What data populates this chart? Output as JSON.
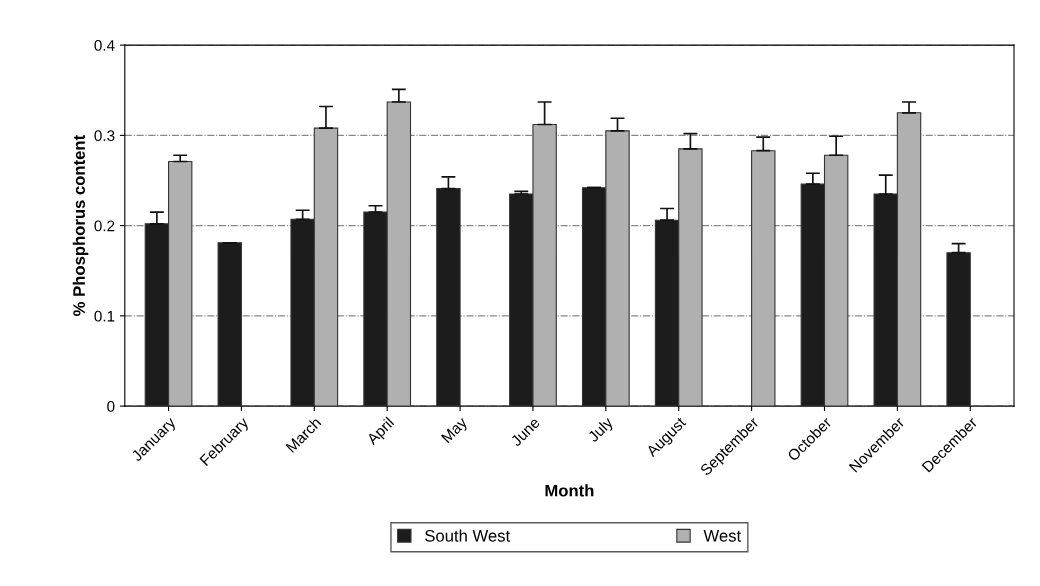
{
  "chart_data": {
    "type": "bar",
    "xlabel": "Month",
    "ylabel": "% Phosphorus content",
    "categories": [
      "January",
      "February",
      "March",
      "April",
      "May",
      "June",
      "July",
      "August",
      "September",
      "October",
      "November",
      "December"
    ],
    "series": [
      {
        "name": "South West",
        "color": "#1c1c1c",
        "values": [
          0.202,
          0.181,
          0.207,
          0.215,
          0.241,
          0.235,
          0.242,
          0.206,
          null,
          0.246,
          0.235,
          0.17
        ],
        "errors": [
          [
            0.202,
            0.215
          ],
          null,
          [
            0.207,
            0.217
          ],
          [
            0.215,
            0.222
          ],
          [
            0.241,
            0.254
          ],
          [
            0.235,
            0.238
          ],
          null,
          [
            0.206,
            0.219
          ],
          null,
          [
            0.246,
            0.258
          ],
          [
            0.235,
            0.256
          ],
          [
            0.17,
            0.18
          ]
        ]
      },
      {
        "name": "West",
        "color": "#b0b0b0",
        "values": [
          0.271,
          null,
          0.308,
          0.337,
          null,
          0.312,
          0.305,
          0.285,
          0.283,
          0.278,
          0.325,
          null
        ],
        "errors": [
          [
            0.271,
            0.278
          ],
          null,
          [
            0.308,
            0.332
          ],
          [
            0.337,
            0.351
          ],
          null,
          [
            0.312,
            0.337
          ],
          [
            0.305,
            0.319
          ],
          [
            0.285,
            0.302
          ],
          [
            0.283,
            0.298
          ],
          [
            0.278,
            0.299
          ],
          [
            0.325,
            0.337
          ],
          null
        ]
      }
    ],
    "ylim": [
      0,
      0.4
    ],
    "yticks": [
      0,
      0.1,
      0.2,
      0.3,
      0.4
    ],
    "grid": "y",
    "legend": "bottom"
  }
}
